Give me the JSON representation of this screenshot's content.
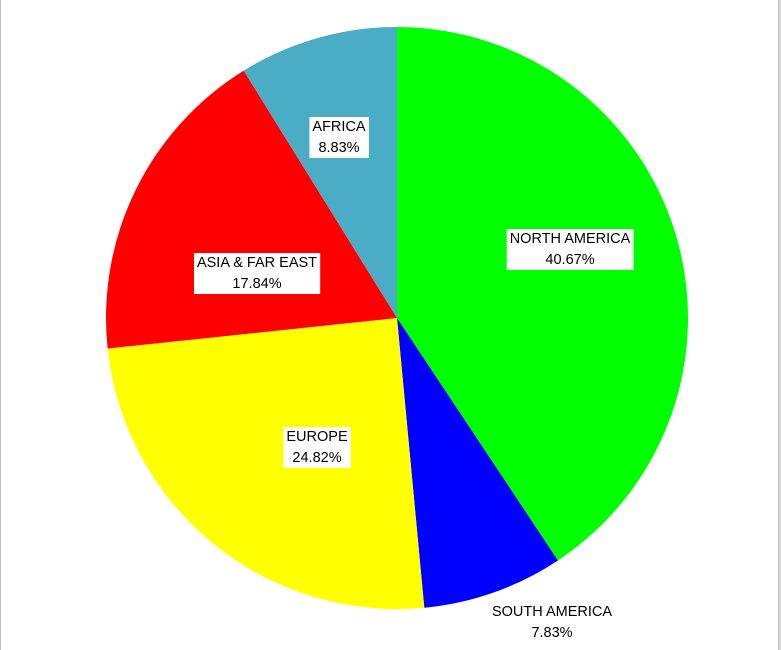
{
  "chart_data": {
    "type": "pie",
    "start_angle_deg": 0,
    "direction": "clockwise",
    "slices": [
      {
        "label": "NORTH AMERICA",
        "value": 40.67,
        "value_label": "40.67%",
        "color": "#00ff00"
      },
      {
        "label": "SOUTH AMERICA",
        "value": 7.83,
        "value_label": "7.83%",
        "color": "#0000ff"
      },
      {
        "label": "EUROPE",
        "value": 24.82,
        "value_label": "24.82%",
        "color": "#ffff00"
      },
      {
        "label": "ASIA & FAR EAST",
        "value": 17.84,
        "value_label": "17.84%",
        "color": "#ff0000"
      },
      {
        "label": "AFRICA",
        "value": 8.83,
        "value_label": "8.83%",
        "color": "#4bacc6"
      }
    ]
  }
}
